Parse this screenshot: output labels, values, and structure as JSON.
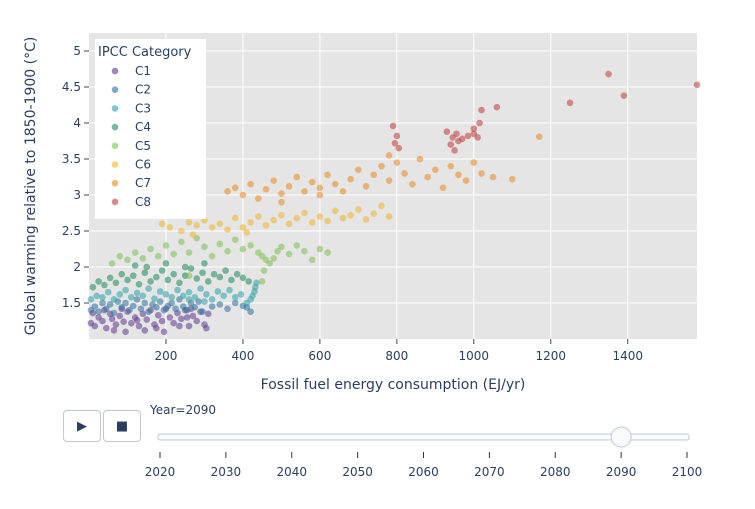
{
  "chart_data": {
    "type": "scatter",
    "title": "",
    "xlabel": "Fossil fuel energy consumption (EJ/yr)",
    "ylabel": "Global warming relative to 1850-1900 (°C)",
    "xlim": [
      0,
      1580
    ],
    "ylim": [
      1.0,
      5.25
    ],
    "xticks": [
      200,
      400,
      600,
      800,
      1000,
      1200,
      1400
    ],
    "yticks": [
      1.5,
      2,
      2.5,
      3,
      3.5,
      4,
      4.5,
      5
    ],
    "ytick_labels": [
      "1.5",
      "2",
      "2.5",
      "3",
      "3.5",
      "4",
      "4.5",
      "5"
    ],
    "grid": true,
    "legend": {
      "title": "IPCC Category",
      "position": "top-left"
    },
    "series": [
      {
        "name": "C1",
        "color": "#5c3b8f",
        "points": [
          [
            5,
            1.22
          ],
          [
            15,
            1.18
          ],
          [
            25,
            1.3
          ],
          [
            35,
            1.25
          ],
          [
            45,
            1.15
          ],
          [
            55,
            1.35
          ],
          [
            60,
            1.28
          ],
          [
            70,
            1.2
          ],
          [
            80,
            1.32
          ],
          [
            90,
            1.24
          ],
          [
            100,
            1.38
          ],
          [
            110,
            1.22
          ],
          [
            120,
            1.3
          ],
          [
            130,
            1.18
          ],
          [
            140,
            1.35
          ],
          [
            150,
            1.27
          ],
          [
            160,
            1.4
          ],
          [
            170,
            1.2
          ],
          [
            180,
            1.33
          ],
          [
            190,
            1.25
          ],
          [
            200,
            1.42
          ],
          [
            210,
            1.3
          ],
          [
            220,
            1.22
          ],
          [
            230,
            1.36
          ],
          [
            240,
            1.28
          ],
          [
            250,
            1.4
          ],
          [
            260,
            1.18
          ],
          [
            270,
            1.32
          ],
          [
            280,
            1.25
          ],
          [
            290,
            1.38
          ],
          [
            300,
            1.2
          ],
          [
            305,
            1.15
          ],
          [
            310,
            1.35
          ],
          [
            65,
            1.12
          ],
          [
            95,
            1.1
          ],
          [
            125,
            1.26
          ],
          [
            175,
            1.15
          ],
          [
            235,
            1.18
          ],
          [
            265,
            1.42
          ],
          [
            10,
            1.36
          ],
          [
            40,
            1.4
          ],
          [
            85,
            1.42
          ],
          [
            145,
            1.12
          ],
          [
            195,
            1.1
          ],
          [
            255,
            1.3
          ]
        ]
      },
      {
        "name": "C2",
        "color": "#2e6f9e",
        "points": [
          [
            5,
            1.4
          ],
          [
            15,
            1.45
          ],
          [
            25,
            1.38
          ],
          [
            35,
            1.5
          ],
          [
            45,
            1.42
          ],
          [
            55,
            1.48
          ],
          [
            65,
            1.36
          ],
          [
            75,
            1.52
          ],
          [
            85,
            1.44
          ],
          [
            95,
            1.5
          ],
          [
            105,
            1.4
          ],
          [
            115,
            1.46
          ],
          [
            125,
            1.55
          ],
          [
            135,
            1.42
          ],
          [
            145,
            1.5
          ],
          [
            155,
            1.38
          ],
          [
            165,
            1.48
          ],
          [
            175,
            1.44
          ],
          [
            185,
            1.52
          ],
          [
            195,
            1.4
          ],
          [
            205,
            1.46
          ],
          [
            215,
            1.5
          ],
          [
            225,
            1.42
          ],
          [
            235,
            1.55
          ],
          [
            245,
            1.45
          ],
          [
            255,
            1.4
          ],
          [
            265,
            1.5
          ],
          [
            275,
            1.44
          ],
          [
            285,
            1.52
          ],
          [
            295,
            1.38
          ],
          [
            320,
            1.45
          ],
          [
            340,
            1.48
          ],
          [
            360,
            1.42
          ],
          [
            380,
            1.5
          ],
          [
            400,
            1.46
          ],
          [
            410,
            1.44
          ],
          [
            420,
            1.38
          ]
        ]
      },
      {
        "name": "C3",
        "color": "#2aa3a8",
        "points": [
          [
            5,
            1.55
          ],
          [
            20,
            1.6
          ],
          [
            35,
            1.58
          ],
          [
            50,
            1.65
          ],
          [
            65,
            1.55
          ],
          [
            80,
            1.62
          ],
          [
            95,
            1.68
          ],
          [
            110,
            1.58
          ],
          [
            125,
            1.64
          ],
          [
            140,
            1.6
          ],
          [
            155,
            1.7
          ],
          [
            170,
            1.56
          ],
          [
            185,
            1.66
          ],
          [
            200,
            1.62
          ],
          [
            215,
            1.58
          ],
          [
            230,
            1.68
          ],
          [
            245,
            1.6
          ],
          [
            260,
            1.65
          ],
          [
            275,
            1.58
          ],
          [
            290,
            1.7
          ],
          [
            305,
            1.62
          ],
          [
            320,
            1.55
          ],
          [
            335,
            1.66
          ],
          [
            350,
            1.6
          ],
          [
            365,
            1.68
          ],
          [
            380,
            1.58
          ],
          [
            395,
            1.62
          ],
          [
            410,
            1.5
          ],
          [
            420,
            1.55
          ],
          [
            425,
            1.6
          ],
          [
            430,
            1.66
          ],
          [
            432,
            1.72
          ],
          [
            435,
            1.78
          ],
          [
            300,
            1.52
          ],
          [
            260,
            1.55
          ]
        ]
      },
      {
        "name": "C4",
        "color": "#1b8a5a",
        "points": [
          [
            10,
            1.72
          ],
          [
            25,
            1.8
          ],
          [
            40,
            1.75
          ],
          [
            55,
            1.85
          ],
          [
            70,
            1.78
          ],
          [
            85,
            1.9
          ],
          [
            100,
            1.82
          ],
          [
            115,
            1.88
          ],
          [
            130,
            1.76
          ],
          [
            145,
            1.92
          ],
          [
            160,
            1.8
          ],
          [
            175,
            1.86
          ],
          [
            190,
            1.95
          ],
          [
            205,
            1.82
          ],
          [
            220,
            1.9
          ],
          [
            235,
            1.78
          ],
          [
            250,
            1.88
          ],
          [
            265,
            1.98
          ],
          [
            280,
            1.84
          ],
          [
            295,
            1.92
          ],
          [
            310,
            1.8
          ],
          [
            325,
            1.9
          ],
          [
            340,
            1.86
          ],
          [
            355,
            1.95
          ],
          [
            370,
            1.82
          ],
          [
            385,
            1.9
          ],
          [
            400,
            1.85
          ],
          [
            415,
            1.8
          ],
          [
            200,
            2.05
          ],
          [
            250,
            2.0
          ],
          [
            300,
            2.05
          ],
          [
            150,
            2.0
          ],
          [
            120,
            2.02
          ]
        ]
      },
      {
        "name": "C5",
        "color": "#7bbf4e",
        "points": [
          [
            60,
            2.05
          ],
          [
            80,
            2.15
          ],
          [
            100,
            2.1
          ],
          [
            120,
            2.2
          ],
          [
            140,
            2.12
          ],
          [
            160,
            2.25
          ],
          [
            180,
            2.15
          ],
          [
            200,
            2.3
          ],
          [
            220,
            2.18
          ],
          [
            240,
            2.35
          ],
          [
            260,
            2.2
          ],
          [
            280,
            2.4
          ],
          [
            300,
            2.28
          ],
          [
            320,
            2.15
          ],
          [
            340,
            2.32
          ],
          [
            360,
            2.22
          ],
          [
            380,
            2.38
          ],
          [
            400,
            2.25
          ],
          [
            420,
            2.3
          ],
          [
            440,
            2.2
          ],
          [
            450,
            2.15
          ],
          [
            460,
            2.1
          ],
          [
            470,
            2.05
          ],
          [
            480,
            2.12
          ],
          [
            490,
            2.22
          ],
          [
            500,
            2.28
          ],
          [
            520,
            2.18
          ],
          [
            540,
            2.3
          ],
          [
            560,
            2.22
          ],
          [
            580,
            2.1
          ],
          [
            600,
            2.25
          ],
          [
            620,
            2.2
          ],
          [
            260,
            1.88
          ],
          [
            450,
            1.8
          ],
          [
            455,
            1.95
          ]
        ]
      },
      {
        "name": "C6",
        "color": "#f0b429",
        "points": [
          [
            190,
            2.6
          ],
          [
            210,
            2.55
          ],
          [
            240,
            2.5
          ],
          [
            260,
            2.62
          ],
          [
            280,
            2.58
          ],
          [
            300,
            2.65
          ],
          [
            320,
            2.55
          ],
          [
            340,
            2.6
          ],
          [
            360,
            2.52
          ],
          [
            380,
            2.68
          ],
          [
            400,
            2.55
          ],
          [
            420,
            2.62
          ],
          [
            440,
            2.7
          ],
          [
            460,
            2.58
          ],
          [
            480,
            2.65
          ],
          [
            500,
            2.72
          ],
          [
            520,
            2.6
          ],
          [
            540,
            2.68
          ],
          [
            560,
            2.75
          ],
          [
            580,
            2.62
          ],
          [
            600,
            2.7
          ],
          [
            620,
            2.64
          ],
          [
            640,
            2.78
          ],
          [
            660,
            2.68
          ],
          [
            680,
            2.72
          ],
          [
            700,
            2.8
          ],
          [
            720,
            2.66
          ],
          [
            740,
            2.74
          ],
          [
            760,
            2.85
          ],
          [
            780,
            2.7
          ],
          [
            270,
            2.45
          ],
          [
            410,
            2.48
          ]
        ]
      },
      {
        "name": "C7",
        "color": "#e8891c",
        "points": [
          [
            360,
            3.05
          ],
          [
            380,
            3.1
          ],
          [
            400,
            3.0
          ],
          [
            420,
            3.15
          ],
          [
            440,
            2.95
          ],
          [
            460,
            3.08
          ],
          [
            480,
            3.2
          ],
          [
            500,
            3.02
          ],
          [
            520,
            3.12
          ],
          [
            540,
            3.25
          ],
          [
            560,
            3.05
          ],
          [
            580,
            3.18
          ],
          [
            600,
            3.1
          ],
          [
            620,
            3.28
          ],
          [
            640,
            3.15
          ],
          [
            660,
            3.05
          ],
          [
            680,
            3.22
          ],
          [
            700,
            3.35
          ],
          [
            720,
            3.12
          ],
          [
            740,
            3.28
          ],
          [
            760,
            3.4
          ],
          [
            780,
            3.2
          ],
          [
            800,
            3.45
          ],
          [
            820,
            3.3
          ],
          [
            840,
            3.15
          ],
          [
            860,
            3.5
          ],
          [
            880,
            3.25
          ],
          [
            900,
            3.35
          ],
          [
            920,
            3.1
          ],
          [
            940,
            3.4
          ],
          [
            960,
            3.28
          ],
          [
            980,
            3.2
          ],
          [
            1000,
            3.45
          ],
          [
            1020,
            3.3
          ],
          [
            1050,
            3.25
          ],
          [
            1100,
            3.22
          ],
          [
            1170,
            3.81
          ],
          [
            780,
            3.55
          ],
          [
            600,
            3.0
          ],
          [
            500,
            2.9
          ]
        ]
      },
      {
        "name": "C8",
        "color": "#c23b3b",
        "points": [
          [
            790,
            3.96
          ],
          [
            800,
            3.82
          ],
          [
            795,
            3.72
          ],
          [
            805,
            3.65
          ],
          [
            930,
            3.88
          ],
          [
            945,
            3.8
          ],
          [
            955,
            3.85
          ],
          [
            960,
            3.75
          ],
          [
            970,
            3.78
          ],
          [
            985,
            3.82
          ],
          [
            1000,
            3.85
          ],
          [
            1010,
            3.8
          ],
          [
            1000,
            3.92
          ],
          [
            1015,
            4.0
          ],
          [
            1020,
            4.18
          ],
          [
            1060,
            4.22
          ],
          [
            1250,
            4.28
          ],
          [
            1350,
            4.68
          ],
          [
            1390,
            4.38
          ],
          [
            1580,
            4.53
          ],
          [
            940,
            3.7
          ],
          [
            950,
            3.62
          ]
        ]
      }
    ]
  },
  "controls": {
    "play_icon": "▶",
    "stop_icon": "■",
    "year_label": "Year=2090",
    "slider": {
      "min": 2020,
      "max": 2100,
      "value": 2090,
      "tick_labels": [
        "2020",
        "2030",
        "2040",
        "2050",
        "2060",
        "2070",
        "2080",
        "2090",
        "2100"
      ]
    }
  }
}
